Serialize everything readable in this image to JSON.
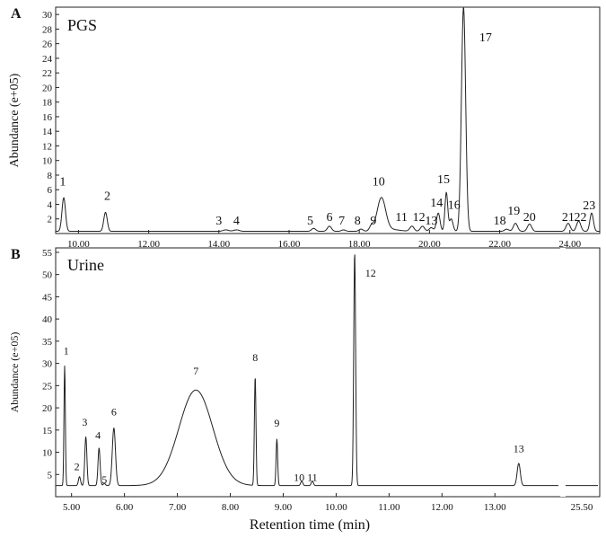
{
  "figure": {
    "xlabel": "Retention time (min)"
  },
  "chart_data": [
    {
      "type": "line",
      "panel_letter": "A",
      "sample": "PGS",
      "ylabel": "Abundance (e+05)",
      "ylim": [
        0,
        31
      ],
      "yticks": [
        2,
        4,
        6,
        8,
        10,
        12,
        14,
        16,
        18,
        20,
        22,
        24,
        26,
        28,
        30
      ],
      "xlim": [
        9.35,
        24.85
      ],
      "xticks": [
        10,
        12,
        14,
        16,
        18,
        20,
        22,
        24
      ],
      "xtick_labels": [
        "10.00",
        "12.00",
        "14.00",
        "16.00",
        "18.00",
        "20.00",
        "22.00",
        "24.00"
      ],
      "baseline": 0.3,
      "peaks": [
        {
          "label": "1",
          "x": 9.58,
          "y": 4.9,
          "w": 0.05,
          "lx": 9.55,
          "ly": 6.6
        },
        {
          "label": "2",
          "x": 10.77,
          "y": 2.9,
          "w": 0.05,
          "lx": 10.82,
          "ly": 4.6
        },
        {
          "label": "3",
          "x": 14.2,
          "y": 0.5,
          "w": 0.08,
          "lx": 14.0,
          "ly": 1.2
        },
        {
          "label": "4",
          "x": 14.5,
          "y": 0.5,
          "w": 0.08,
          "lx": 14.5,
          "ly": 1.2
        },
        {
          "label": "5",
          "x": 16.7,
          "y": 0.7,
          "w": 0.06,
          "lx": 16.6,
          "ly": 1.2
        },
        {
          "label": "6",
          "x": 17.15,
          "y": 1.0,
          "w": 0.06,
          "lx": 17.15,
          "ly": 1.7
        },
        {
          "label": "7",
          "x": 17.55,
          "y": 0.5,
          "w": 0.06,
          "lx": 17.5,
          "ly": 1.2
        },
        {
          "label": "8",
          "x": 18.05,
          "y": 0.6,
          "w": 0.06,
          "lx": 17.95,
          "ly": 1.2
        },
        {
          "label": "9",
          "x": 18.35,
          "y": 1.0,
          "w": 0.06,
          "lx": 18.4,
          "ly": 1.2
        },
        {
          "label": "10",
          "x": 18.63,
          "y": 4.8,
          "w": 0.12,
          "lx": 18.55,
          "ly": 6.6
        },
        {
          "label": "11",
          "x": 19.5,
          "y": 1.0,
          "w": 0.06,
          "lx": 19.2,
          "ly": 1.7
        },
        {
          "label": "12",
          "x": 19.8,
          "y": 1.0,
          "w": 0.06,
          "lx": 19.7,
          "ly": 1.7
        },
        {
          "label": "13",
          "x": 20.05,
          "y": 0.8,
          "w": 0.06,
          "lx": 20.05,
          "ly": 1.2
        },
        {
          "label": "14",
          "x": 20.25,
          "y": 2.8,
          "w": 0.05,
          "lx": 20.2,
          "ly": 3.7
        },
        {
          "label": "15",
          "x": 20.48,
          "y": 5.6,
          "w": 0.04,
          "lx": 20.4,
          "ly": 6.9
        },
        {
          "label": "16",
          "x": 20.62,
          "y": 2.0,
          "w": 0.05,
          "lx": 20.7,
          "ly": 3.4
        },
        {
          "label": "17",
          "x": 20.97,
          "y": 31.0,
          "w": 0.06,
          "lx": 21.6,
          "ly": 26.3
        },
        {
          "label": "18",
          "x": 22.2,
          "y": 0.6,
          "w": 0.06,
          "lx": 22.0,
          "ly": 1.2
        },
        {
          "label": "19",
          "x": 22.45,
          "y": 1.4,
          "w": 0.06,
          "lx": 22.4,
          "ly": 2.6
        },
        {
          "label": "20",
          "x": 22.85,
          "y": 1.3,
          "w": 0.06,
          "lx": 22.85,
          "ly": 1.7
        },
        {
          "label": "21",
          "x": 23.95,
          "y": 1.4,
          "w": 0.06,
          "lx": 23.95,
          "ly": 1.7
        },
        {
          "label": "22",
          "x": 24.25,
          "y": 1.7,
          "w": 0.06,
          "lx": 24.3,
          "ly": 1.7
        },
        {
          "label": "23",
          "x": 24.62,
          "y": 2.8,
          "w": 0.05,
          "lx": 24.55,
          "ly": 3.3
        }
      ]
    },
    {
      "type": "line",
      "panel_letter": "B",
      "sample": "Urine",
      "ylabel": "Abundance (e+05)",
      "ylim": [
        0,
        56
      ],
      "yticks": [
        5,
        10,
        15,
        20,
        25,
        30,
        35,
        40,
        45,
        50,
        55
      ],
      "xlim": [
        4.7,
        14.2
      ],
      "xticks": [
        5,
        6,
        7,
        8,
        9,
        10,
        11,
        12,
        13
      ],
      "xtick_labels": [
        "5.00",
        "6.00",
        "7.00",
        "8.00",
        "9.00",
        "10.00",
        "11.00",
        "12.00",
        "13.00"
      ],
      "baseline": 2.5,
      "broad_peak": {
        "x": 7.35,
        "y": 24.0
      },
      "peaks": [
        {
          "label": "1",
          "x": 4.87,
          "y": 29.5,
          "w": 0.013,
          "lx": 4.9,
          "ly": 32.0
        },
        {
          "label": "2",
          "x": 5.15,
          "y": 4.5,
          "w": 0.02,
          "lx": 5.1,
          "ly": 6.0
        },
        {
          "label": "3",
          "x": 5.27,
          "y": 13.5,
          "w": 0.02,
          "lx": 5.25,
          "ly": 16.0
        },
        {
          "label": "4",
          "x": 5.52,
          "y": 11.0,
          "w": 0.02,
          "lx": 5.5,
          "ly": 13.0
        },
        {
          "label": "5",
          "x": 5.62,
          "y": 3.0,
          "w": 0.02,
          "lx": 5.62,
          "ly": 3.0
        },
        {
          "label": "6",
          "x": 5.8,
          "y": 15.5,
          "w": 0.03,
          "lx": 5.8,
          "ly": 18.3
        },
        {
          "label": "7",
          "x": 7.35,
          "y": 24.0,
          "w": 0.05,
          "lx": 7.35,
          "ly": 27.5
        },
        {
          "label": "8",
          "x": 8.47,
          "y": 27.0,
          "w": 0.015,
          "lx": 8.47,
          "ly": 30.5
        },
        {
          "label": "9",
          "x": 8.88,
          "y": 13.0,
          "w": 0.015,
          "lx": 8.88,
          "ly": 15.8
        },
        {
          "label": "10",
          "x": 9.35,
          "y": 3.5,
          "w": 0.02,
          "lx": 9.3,
          "ly": 3.5
        },
        {
          "label": "11",
          "x": 9.55,
          "y": 3.5,
          "w": 0.02,
          "lx": 9.55,
          "ly": 3.5
        },
        {
          "label": "12",
          "x": 10.35,
          "y": 55.0,
          "w": 0.018,
          "lx": 10.65,
          "ly": 49.5
        },
        {
          "label": "13",
          "x": 13.45,
          "y": 7.5,
          "w": 0.03,
          "lx": 13.45,
          "ly": 10.0
        }
      ],
      "inset_axis": {
        "tick_label": "25.50"
      }
    }
  ]
}
